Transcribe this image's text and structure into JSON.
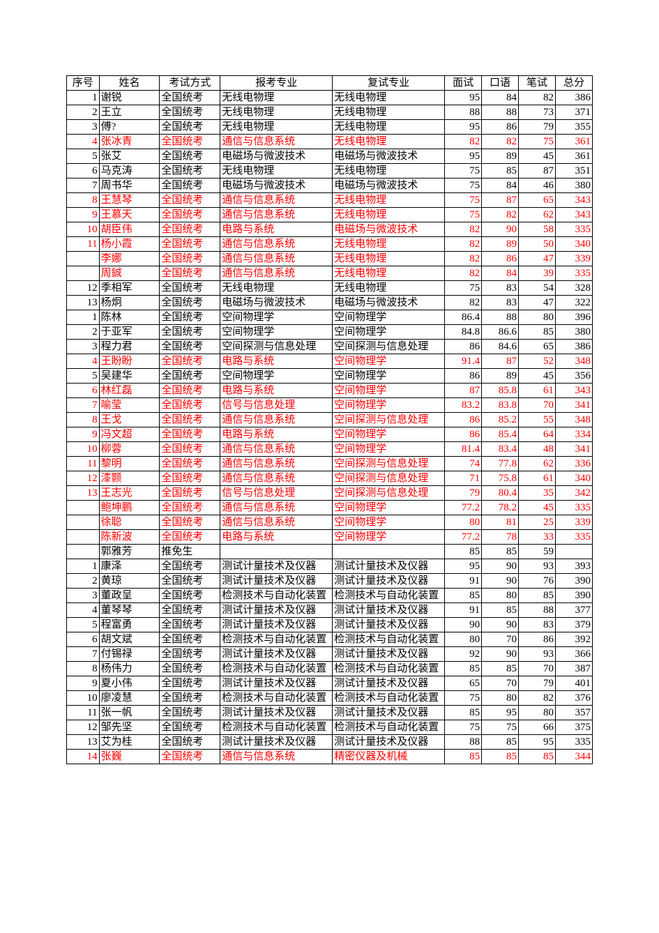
{
  "headers": [
    "序号",
    "姓名",
    "考试方式",
    "报考专业",
    "复试专业",
    "面试",
    "口语",
    "笔试",
    "总分"
  ],
  "rows": [
    {
      "seq": "1",
      "name": "谢锐",
      "exam": "全国统考",
      "major": "无线电物理",
      "ret": "无线电物理",
      "n1": "95",
      "n2": "84",
      "n3": "82",
      "n4": "386",
      "red": false
    },
    {
      "seq": "2",
      "name": "王立",
      "exam": "全国统考",
      "major": "无线电物理",
      "ret": "无线电物理",
      "n1": "88",
      "n2": "88",
      "n3": "73",
      "n4": "371",
      "red": false
    },
    {
      "seq": "3",
      "name": "傅?",
      "exam": "全国统考",
      "major": "无线电物理",
      "ret": "无线电物理",
      "n1": "95",
      "n2": "86",
      "n3": "79",
      "n4": "355",
      "red": false
    },
    {
      "seq": "4",
      "name": "张冰青",
      "exam": "全国统考",
      "major": "通信与信息系统",
      "ret": "无线电物理",
      "n1": "82",
      "n2": "82",
      "n3": "75",
      "n4": "361",
      "red": true
    },
    {
      "seq": "5",
      "name": "张艾",
      "exam": "全国统考",
      "major": "电磁场与微波技术",
      "ret": "电磁场与微波技术",
      "n1": "95",
      "n2": "89",
      "n3": "45",
      "n4": "361",
      "red": false
    },
    {
      "seq": "6",
      "name": "马克涛",
      "exam": "全国统考",
      "major": "无线电物理",
      "ret": "无线电物理",
      "n1": "75",
      "n2": "85",
      "n3": "87",
      "n4": "351",
      "red": false
    },
    {
      "seq": "7",
      "name": "周书华",
      "exam": "全国统考",
      "major": "电磁场与微波技术",
      "ret": "电磁场与微波技术",
      "n1": "75",
      "n2": "84",
      "n3": "46",
      "n4": "380",
      "red": false
    },
    {
      "seq": "8",
      "name": "王慧琴",
      "exam": "全国统考",
      "major": "通信与信息系统",
      "ret": "无线电物理",
      "n1": "75",
      "n2": "87",
      "n3": "65",
      "n4": "343",
      "red": true
    },
    {
      "seq": "9",
      "name": "王慕天",
      "exam": "全国统考",
      "major": "通信与信息系统",
      "ret": "无线电物理",
      "n1": "75",
      "n2": "82",
      "n3": "62",
      "n4": "343",
      "red": true
    },
    {
      "seq": "10",
      "name": "胡臣伟",
      "exam": "全国统考",
      "major": "电路与系统",
      "ret": "电磁场与微波技术",
      "n1": "82",
      "n2": "90",
      "n3": "58",
      "n4": "335",
      "red": true
    },
    {
      "seq": "11",
      "name": "杨小霞",
      "exam": "全国统考",
      "major": "通信与信息系统",
      "ret": "无线电物理",
      "n1": "82",
      "n2": "89",
      "n3": "50",
      "n4": "340",
      "red": true
    },
    {
      "seq": "",
      "name": "李娜",
      "exam": "全国统考",
      "major": "通信与信息系统",
      "ret": "无线电物理",
      "n1": "82",
      "n2": "86",
      "n3": "47",
      "n4": "339",
      "red": true
    },
    {
      "seq": "",
      "name": "周鋮",
      "exam": "全国统考",
      "major": "通信与信息系统",
      "ret": "无线电物理",
      "n1": "82",
      "n2": "84",
      "n3": "39",
      "n4": "335",
      "red": true
    },
    {
      "seq": "12",
      "name": "季相军",
      "exam": "全国统考",
      "major": "无线电物理",
      "ret": "无线电物理",
      "n1": "75",
      "n2": "83",
      "n3": "54",
      "n4": "328",
      "red": false
    },
    {
      "seq": "13",
      "name": "杨炯",
      "exam": "全国统考",
      "major": "电磁场与微波技术",
      "ret": "电磁场与微波技术",
      "n1": "82",
      "n2": "83",
      "n3": "47",
      "n4": "322",
      "red": false
    },
    {
      "seq": "1",
      "name": "陈林",
      "exam": "全国统考",
      "major": "空间物理学",
      "ret": "空间物理学",
      "n1": "86.4",
      "n2": "88",
      "n3": "80",
      "n4": "396",
      "red": false
    },
    {
      "seq": "2",
      "name": "于亚军",
      "exam": "全国统考",
      "major": "空间物理学",
      "ret": "空间物理学",
      "n1": "84.8",
      "n2": "86.6",
      "n3": "85",
      "n4": "380",
      "red": false
    },
    {
      "seq": "3",
      "name": "程力君",
      "exam": "全国统考",
      "major": "空间探测与信息处理",
      "ret": "空间探测与信息处理",
      "n1": "86",
      "n2": "84.6",
      "n3": "65",
      "n4": "386",
      "red": false
    },
    {
      "seq": "4",
      "name": "王盼盼",
      "exam": "全国统考",
      "major": "电路与系统",
      "ret": "空间物理学",
      "n1": "91.4",
      "n2": "87",
      "n3": "52",
      "n4": "348",
      "red": true
    },
    {
      "seq": "5",
      "name": "吴建华",
      "exam": "全国统考",
      "major": "空间物理学",
      "ret": "空间物理学",
      "n1": "86",
      "n2": "89",
      "n3": "45",
      "n4": "356",
      "red": false
    },
    {
      "seq": "6",
      "name": "林红磊",
      "exam": "全国统考",
      "major": "电路与系统",
      "ret": "空间物理学",
      "n1": "87",
      "n2": "85.8",
      "n3": "61",
      "n4": "343",
      "red": true
    },
    {
      "seq": "7",
      "name": "喻莹",
      "exam": "全国统考",
      "major": "信号与信息处理",
      "ret": "空间物理学",
      "n1": "83.2",
      "n2": "83.8",
      "n3": "70",
      "n4": "341",
      "red": true
    },
    {
      "seq": "8",
      "name": "王戈",
      "exam": "全国统考",
      "major": "通信与信息系统",
      "ret": "空间探测与信息处理",
      "n1": "86",
      "n2": "85.2",
      "n3": "55",
      "n4": "348",
      "red": true
    },
    {
      "seq": "9",
      "name": "冯文超",
      "exam": "全国统考",
      "major": "电路与系统",
      "ret": "空间物理学",
      "n1": "86",
      "n2": "85.4",
      "n3": "64",
      "n4": "334",
      "red": true
    },
    {
      "seq": "10",
      "name": "柳蓉",
      "exam": "全国统考",
      "major": "通信与信息系统",
      "ret": "空间物理学",
      "n1": "81.4",
      "n2": "83.4",
      "n3": "48",
      "n4": "341",
      "red": true
    },
    {
      "seq": "11",
      "name": "黎明",
      "exam": "全国统考",
      "major": "通信与信息系统",
      "ret": "空间探测与信息处理",
      "n1": "74",
      "n2": "77.8",
      "n3": "62",
      "n4": "336",
      "red": true
    },
    {
      "seq": "12",
      "name": "漆颢",
      "exam": "全国统考",
      "major": "通信与信息系统",
      "ret": "空间探测与信息处理",
      "n1": "71",
      "n2": "75.8",
      "n3": "61",
      "n4": "340",
      "red": true
    },
    {
      "seq": "13",
      "name": "王志光",
      "exam": "全国统考",
      "major": "信号与信息处理",
      "ret": "空间探测与信息处理",
      "n1": "79",
      "n2": "80.4",
      "n3": "35",
      "n4": "342",
      "red": true
    },
    {
      "seq": "",
      "name": "鲍坤鹏",
      "exam": "全国统考",
      "major": "通信与信息系统",
      "ret": "空间物理学",
      "n1": "77.2",
      "n2": "78.2",
      "n3": "45",
      "n4": "335",
      "red": true
    },
    {
      "seq": "",
      "name": "徐聪",
      "exam": "全国统考",
      "major": "通信与信息系统",
      "ret": "空间物理学",
      "n1": "80",
      "n2": "81",
      "n3": "25",
      "n4": "339",
      "red": true
    },
    {
      "seq": "",
      "name": "陈新波",
      "exam": "全国统考",
      "major": "电路与系统",
      "ret": "空间物理学",
      "n1": "77.2",
      "n2": "78",
      "n3": "33",
      "n4": "335",
      "red": true
    },
    {
      "seq": "",
      "name": "郭雅芳",
      "exam": "推免生",
      "major": "",
      "ret": "",
      "n1": "85",
      "n2": "85",
      "n3": "59",
      "n4": "",
      "red": false
    },
    {
      "seq": "1",
      "name": "康泽",
      "exam": "全国统考",
      "major": "测试计量技术及仪器",
      "ret": "测试计量技术及仪器",
      "n1": "95",
      "n2": "90",
      "n3": "93",
      "n4": "393",
      "red": false
    },
    {
      "seq": "2",
      "name": "黄琼",
      "exam": "全国统考",
      "major": "测试计量技术及仪器",
      "ret": "测试计量技术及仪器",
      "n1": "91",
      "n2": "90",
      "n3": "76",
      "n4": "390",
      "red": false
    },
    {
      "seq": "3",
      "name": "董政呈",
      "exam": "全国统考",
      "major": "检测技术与自动化装置",
      "ret": "检测技术与自动化装置",
      "n1": "85",
      "n2": "80",
      "n3": "85",
      "n4": "390",
      "red": false
    },
    {
      "seq": "4",
      "name": "董琴琴",
      "exam": "全国统考",
      "major": "测试计量技术及仪器",
      "ret": "测试计量技术及仪器",
      "n1": "91",
      "n2": "85",
      "n3": "88",
      "n4": "377",
      "red": false
    },
    {
      "seq": "5",
      "name": "程富勇",
      "exam": "全国统考",
      "major": "测试计量技术及仪器",
      "ret": "测试计量技术及仪器",
      "n1": "90",
      "n2": "90",
      "n3": "83",
      "n4": "379",
      "red": false
    },
    {
      "seq": "6",
      "name": "胡文斌",
      "exam": "全国统考",
      "major": "检测技术与自动化装置",
      "ret": "检测技术与自动化装置",
      "n1": "80",
      "n2": "70",
      "n3": "86",
      "n4": "392",
      "red": false
    },
    {
      "seq": "7",
      "name": "付锡禄",
      "exam": "全国统考",
      "major": "测试计量技术及仪器",
      "ret": "测试计量技术及仪器",
      "n1": "92",
      "n2": "90",
      "n3": "93",
      "n4": "366",
      "red": false
    },
    {
      "seq": "8",
      "name": "杨伟力",
      "exam": "全国统考",
      "major": "检测技术与自动化装置",
      "ret": "检测技术与自动化装置",
      "n1": "85",
      "n2": "85",
      "n3": "70",
      "n4": "387",
      "red": false
    },
    {
      "seq": "9",
      "name": "夏小伟",
      "exam": "全国统考",
      "major": "测试计量技术及仪器",
      "ret": "测试计量技术及仪器",
      "n1": "65",
      "n2": "70",
      "n3": "79",
      "n4": "401",
      "red": false
    },
    {
      "seq": "10",
      "name": "廖凌慧",
      "exam": "全国统考",
      "major": "检测技术与自动化装置",
      "ret": "检测技术与自动化装置",
      "n1": "75",
      "n2": "80",
      "n3": "82",
      "n4": "376",
      "red": false
    },
    {
      "seq": "11",
      "name": "张一帆",
      "exam": "全国统考",
      "major": "测试计量技术及仪器",
      "ret": "测试计量技术及仪器",
      "n1": "85",
      "n2": "95",
      "n3": "80",
      "n4": "357",
      "red": false
    },
    {
      "seq": "12",
      "name": "邹先坚",
      "exam": "全国统考",
      "major": "检测技术与自动化装置",
      "ret": "检测技术与自动化装置",
      "n1": "75",
      "n2": "75",
      "n3": "66",
      "n4": "375",
      "red": false
    },
    {
      "seq": "13",
      "name": "艾为桂",
      "exam": "全国统考",
      "major": "测试计量技术及仪器",
      "ret": "测试计量技术及仪器",
      "n1": "88",
      "n2": "85",
      "n3": "95",
      "n4": "335",
      "red": false
    },
    {
      "seq": "14",
      "name": "张巍",
      "exam": "全国统考",
      "major": "通信与信息系统",
      "ret": "精密仪器及机械",
      "n1": "85",
      "n2": "85",
      "n3": "85",
      "n4": "344",
      "red": true,
      "retRed": true
    }
  ]
}
